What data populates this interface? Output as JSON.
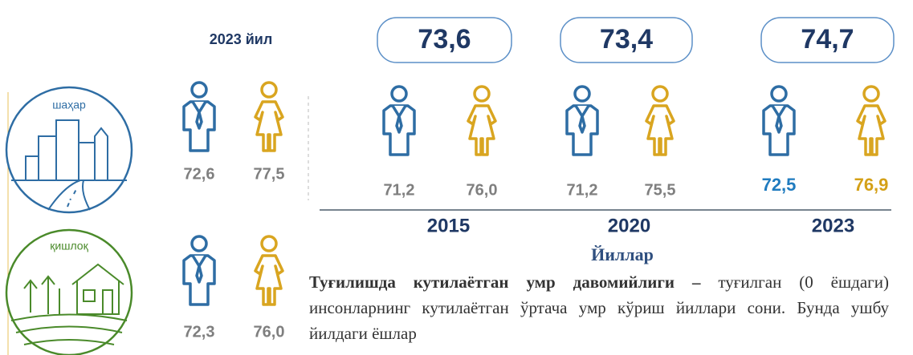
{
  "left_panel": {
    "year_title": "2023 йил",
    "urban": {
      "label": "шаҳар",
      "male": "72,6",
      "female": "77,5"
    },
    "rural": {
      "label": "қишлоқ",
      "male": "72,3",
      "female": "76,0"
    }
  },
  "years_panel": {
    "columns": [
      {
        "total": "73,6",
        "male": "71,2",
        "female": "76,0",
        "year": "2015"
      },
      {
        "total": "73,4",
        "male": "71,2",
        "female": "75,5",
        "year": "2020"
      },
      {
        "total": "74,7",
        "male": "72,5",
        "female": "76,9",
        "year": "2023"
      }
    ],
    "axis_label": "Йиллар"
  },
  "definition": {
    "term": "Туғилишда кутилаётган умр давомийлиги –",
    "text": "туғилган (0 ёшдаги) инсонларнинг кутилаётган ўртача умр кўриш йиллари сони. Бунда ушбу йилдаги ёшлар"
  }
}
